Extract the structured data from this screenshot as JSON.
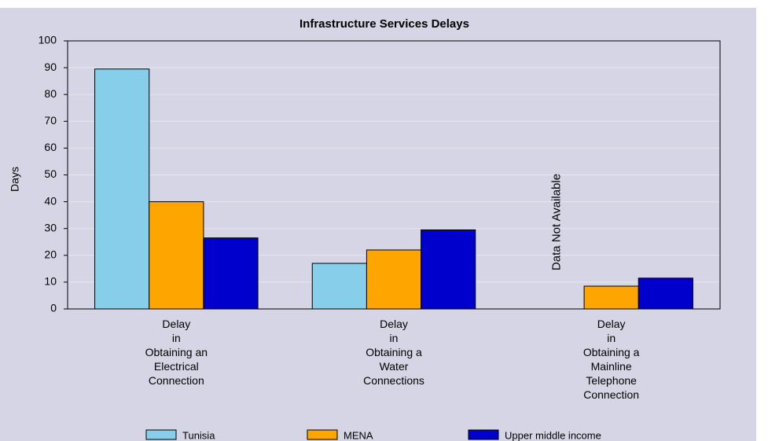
{
  "chart_data": {
    "type": "bar",
    "title": "Infrastructure Services Delays",
    "y_label": "Days",
    "categories": [
      "Delay\nin\nObtaining an\nElectrical\nConnection",
      "Delay\nin\nObtaining a\nWater\nConnections",
      "Delay\nin\nObtaining a\nMainline\nTelephone\nConnection"
    ],
    "series": [
      {
        "name": "Tunisia",
        "color": "#87ceeb",
        "values": [
          89.5,
          17,
          null
        ]
      },
      {
        "name": "MENA",
        "color": "#ffa500",
        "values": [
          40,
          22,
          8.5
        ]
      },
      {
        "name": "Upper middle income",
        "color": "#0000cd",
        "values": [
          26.5,
          29.5,
          11.5
        ]
      }
    ],
    "annotation": {
      "text": "Data Not Available",
      "color": "#ff0000"
    },
    "ylim": [
      0,
      100
    ],
    "yticks": [
      0,
      10,
      20,
      30,
      40,
      50,
      60,
      70,
      80,
      90,
      100
    ],
    "grid": true
  }
}
